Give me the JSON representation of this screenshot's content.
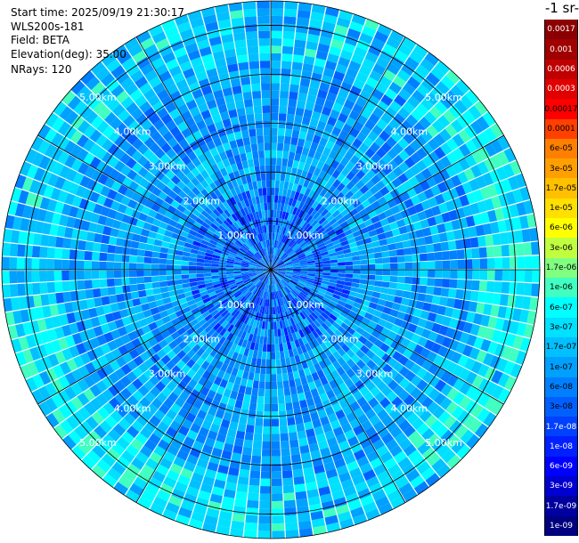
{
  "info": {
    "start_time": "Start time: 2025/09/19 21:30:17",
    "device": "WLS200s-181",
    "field": "Field: BETA",
    "elevation": "Elevation(deg): 35.00",
    "nrays": "NRays: 120"
  },
  "colorbar": {
    "title": "-1 sr-",
    "labels": [
      "0.0017",
      "0.001",
      "0.0006",
      "0.0003",
      "0.00017",
      "0.0001",
      "6e-05",
      "3e-05",
      "1.7e-05",
      "1e-05",
      "6e-06",
      "3e-06",
      "1.7e-06",
      "1e-06",
      "6e-07",
      "3e-07",
      "1.7e-07",
      "1e-07",
      "6e-08",
      "3e-08",
      "1.7e-08",
      "1e-08",
      "6e-09",
      "3e-09",
      "1.7e-09",
      "1e-09"
    ],
    "colors": [
      "#8b0000",
      "#a00000",
      "#c00000",
      "#e00000",
      "#ff0000",
      "#ff4000",
      "#ff8000",
      "#ffa000",
      "#ffc000",
      "#ffe000",
      "#ffff00",
      "#c0ff40",
      "#80ff80",
      "#40ffc0",
      "#00ffff",
      "#00e0ff",
      "#00c0ff",
      "#00a0ff",
      "#0080ff",
      "#0060ff",
      "#0040ff",
      "#0020ff",
      "#0000ff",
      "#0000d0",
      "#0000a0",
      "#000080"
    ],
    "text_colors": [
      "#ffffff",
      "#ffffff",
      "#ffffff",
      "#ffffff",
      "#000000",
      "#000000",
      "#000000",
      "#000000",
      "#000000",
      "#000000",
      "#000000",
      "#000000",
      "#000000",
      "#000000",
      "#000000",
      "#000000",
      "#000000",
      "#000000",
      "#000000",
      "#000000",
      "#ffffff",
      "#ffffff",
      "#ffffff",
      "#ffffff",
      "#ffffff",
      "#ffffff"
    ]
  },
  "chart_data": {
    "type": "heatmap",
    "projection": "polar",
    "rays": 120,
    "max_range_km": 5.5,
    "ring_labels_km": [
      1,
      2,
      3,
      4,
      5
    ],
    "ring_labels": [
      "1.00km",
      "2.00km",
      "3.00km",
      "4.00km",
      "5.00km"
    ],
    "grid": true,
    "colorscale": "log"
  }
}
